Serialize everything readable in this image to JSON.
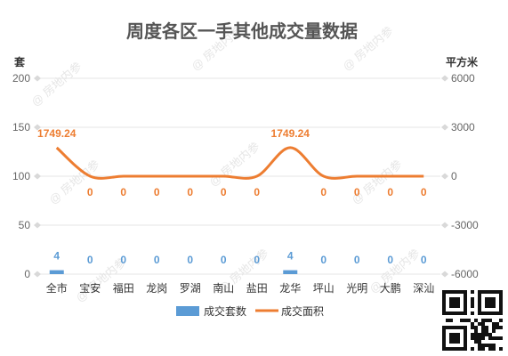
{
  "watermark": "@ 房地内参",
  "chart_data": {
    "type": "bar",
    "title": "周度各区一手其他成交量数据",
    "categories": [
      "全市",
      "宝安",
      "福田",
      "龙岗",
      "罗湖",
      "南山",
      "盐田",
      "龙华",
      "坪山",
      "光明",
      "大鹏",
      "深汕"
    ],
    "y_left": {
      "label": "套",
      "ylim": [
        0,
        200
      ],
      "ticks": [
        0,
        50,
        100,
        150,
        200
      ]
    },
    "y_right": {
      "label": "平方米",
      "ylim": [
        -6000,
        6000
      ],
      "ticks": [
        -6000,
        -3000,
        0,
        3000,
        6000
      ]
    },
    "grid": true,
    "legend_position": "bottom",
    "series": [
      {
        "name": "成交套数",
        "type": "bar",
        "axis": "left",
        "color": "#5b9bd5",
        "values": [
          4,
          0,
          0,
          0,
          0,
          0,
          0,
          4,
          0,
          0,
          0,
          0
        ]
      },
      {
        "name": "成交面积",
        "type": "line",
        "axis": "right",
        "color": "#ed7d31",
        "values": [
          1749.24,
          0,
          0,
          0,
          0,
          0,
          0,
          1749.24,
          0,
          0,
          0,
          0
        ]
      }
    ]
  }
}
